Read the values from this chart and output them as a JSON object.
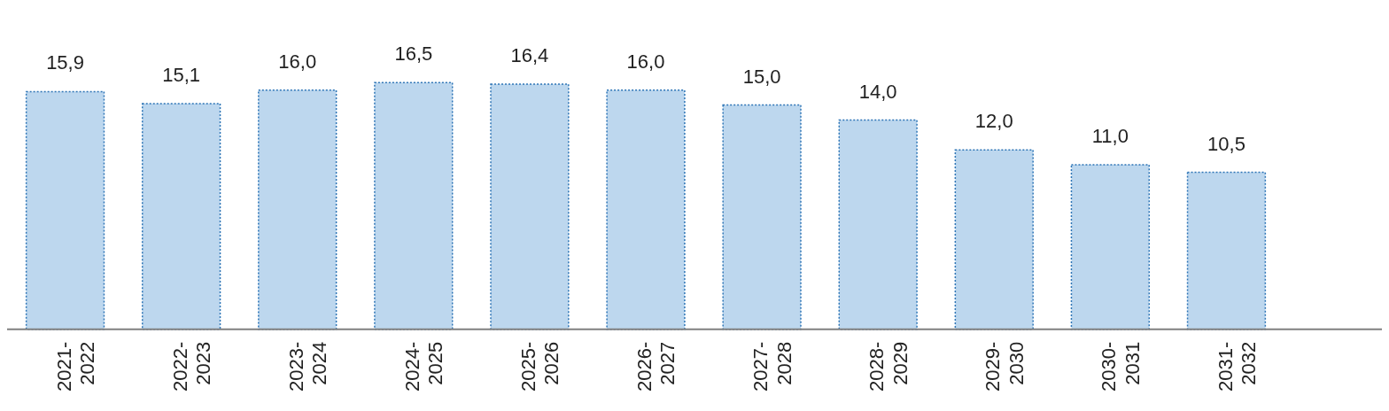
{
  "chart_data": {
    "type": "bar",
    "categories": [
      "2021- 2022",
      "2022- 2023",
      "2023- 2024",
      "2024- 2025",
      "2025- 2026",
      "2026- 2027",
      "2027- 2028",
      "2028- 2029",
      "2029- 2030",
      "2030- 2031",
      "2031- 2032"
    ],
    "values": [
      15.9,
      15.1,
      16.0,
      16.5,
      16.4,
      16.0,
      15.0,
      14.0,
      12.0,
      11.0,
      10.5
    ],
    "value_labels": [
      "15,9",
      "15,1",
      "16,0",
      "16,5",
      "16,4",
      "16,0",
      "15,0",
      "14,0",
      "12,0",
      "11,0",
      "10,5"
    ],
    "color": "#bdd7ee",
    "grid": false,
    "legend": false
  }
}
